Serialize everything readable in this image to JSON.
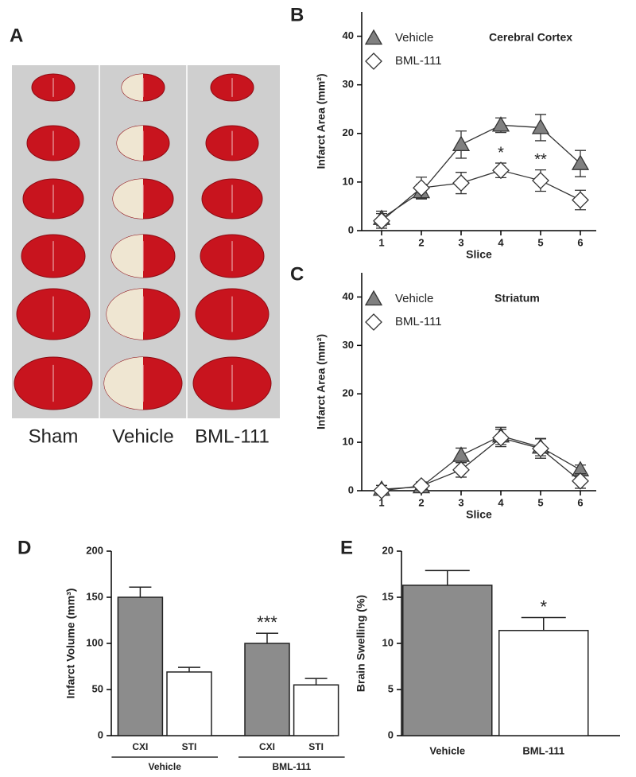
{
  "photo_panel": {
    "panel": "A",
    "columns": [
      "Sham",
      "Vehicle",
      "BML-111"
    ]
  },
  "chart_data": [
    {
      "type": "line",
      "panel": "B",
      "label": "Cerebral Cortex",
      "xlabel": "Slice",
      "ylabel": "Infarct Area (mm²)",
      "x": [
        1,
        2,
        3,
        4,
        5,
        6
      ],
      "xlim": [
        0.5,
        6.4
      ],
      "xticks": [
        1,
        2,
        3,
        4,
        5,
        6
      ],
      "ylim": [
        0,
        45
      ],
      "yticks": [
        0,
        10,
        20,
        30,
        40
      ],
      "series": [
        {
          "name": "Vehicle",
          "color": "#808080",
          "marker": "triangle",
          "values": [
            2.5,
            8,
            17.7,
            21.7,
            21.2,
            13.8
          ],
          "errors": [
            1.5,
            1.5,
            2.8,
            1.5,
            2.7,
            2.7
          ]
        },
        {
          "name": "BML-111",
          "color": "#ffffff",
          "marker": "diamond",
          "values": [
            2,
            8.8,
            9.8,
            12.4,
            10.3,
            6.3
          ],
          "errors": [
            1.5,
            2.2,
            2.2,
            1.5,
            2.2,
            2
          ],
          "significance": [
            null,
            null,
            null,
            "*",
            "**",
            null
          ]
        }
      ]
    },
    {
      "type": "line",
      "panel": "C",
      "label": "Striatum",
      "xlabel": "Slice",
      "ylabel": "Infarct Area (mm²)",
      "x": [
        1,
        2,
        3,
        4,
        5,
        6
      ],
      "xlim": [
        0.5,
        6.4
      ],
      "xticks": [
        1,
        2,
        3,
        4,
        5,
        6
      ],
      "ylim": [
        0,
        45
      ],
      "yticks": [
        0,
        10,
        20,
        30,
        40
      ],
      "series": [
        {
          "name": "Vehicle",
          "color": "#808080",
          "marker": "triangle",
          "values": [
            0.3,
            0.8,
            7.3,
            11.3,
            9,
            4.3
          ],
          "errors": [
            0.8,
            0.8,
            1.5,
            1.8,
            1.8,
            1
          ]
        },
        {
          "name": "BML-111",
          "color": "#ffffff",
          "marker": "diamond",
          "values": [
            0,
            1,
            4.3,
            10.9,
            8.7,
            2
          ],
          "errors": [
            0.5,
            0.8,
            1.5,
            1.8,
            2,
            1.5
          ]
        }
      ]
    },
    {
      "type": "bar",
      "panel": "D",
      "ylabel": "Infarct Volume (mm³)",
      "categories": [
        "CXI",
        "STI",
        "CXI",
        "STI"
      ],
      "groups": [
        "Vehicle",
        "Vehicle",
        "BML-111",
        "BML-111"
      ],
      "values": [
        150,
        69,
        100,
        55
      ],
      "errors": [
        11,
        5,
        11,
        7
      ],
      "colors": [
        "#8c8c8c",
        "#ffffff",
        "#8c8c8c",
        "#ffffff"
      ],
      "significance": [
        null,
        null,
        "***",
        null
      ],
      "ylim": [
        0,
        200
      ],
      "yticks": [
        0,
        50,
        100,
        150,
        200
      ]
    },
    {
      "type": "bar",
      "panel": "E",
      "ylabel": "Brain Swelling (%)",
      "categories": [
        "Vehicle",
        "BML-111"
      ],
      "values": [
        16.3,
        11.4
      ],
      "errors": [
        1.6,
        1.4
      ],
      "colors": [
        "#8c8c8c",
        "#ffffff"
      ],
      "significance": [
        null,
        "*"
      ],
      "ylim": [
        0,
        20
      ],
      "yticks": [
        0,
        5,
        10,
        15,
        20
      ]
    }
  ]
}
